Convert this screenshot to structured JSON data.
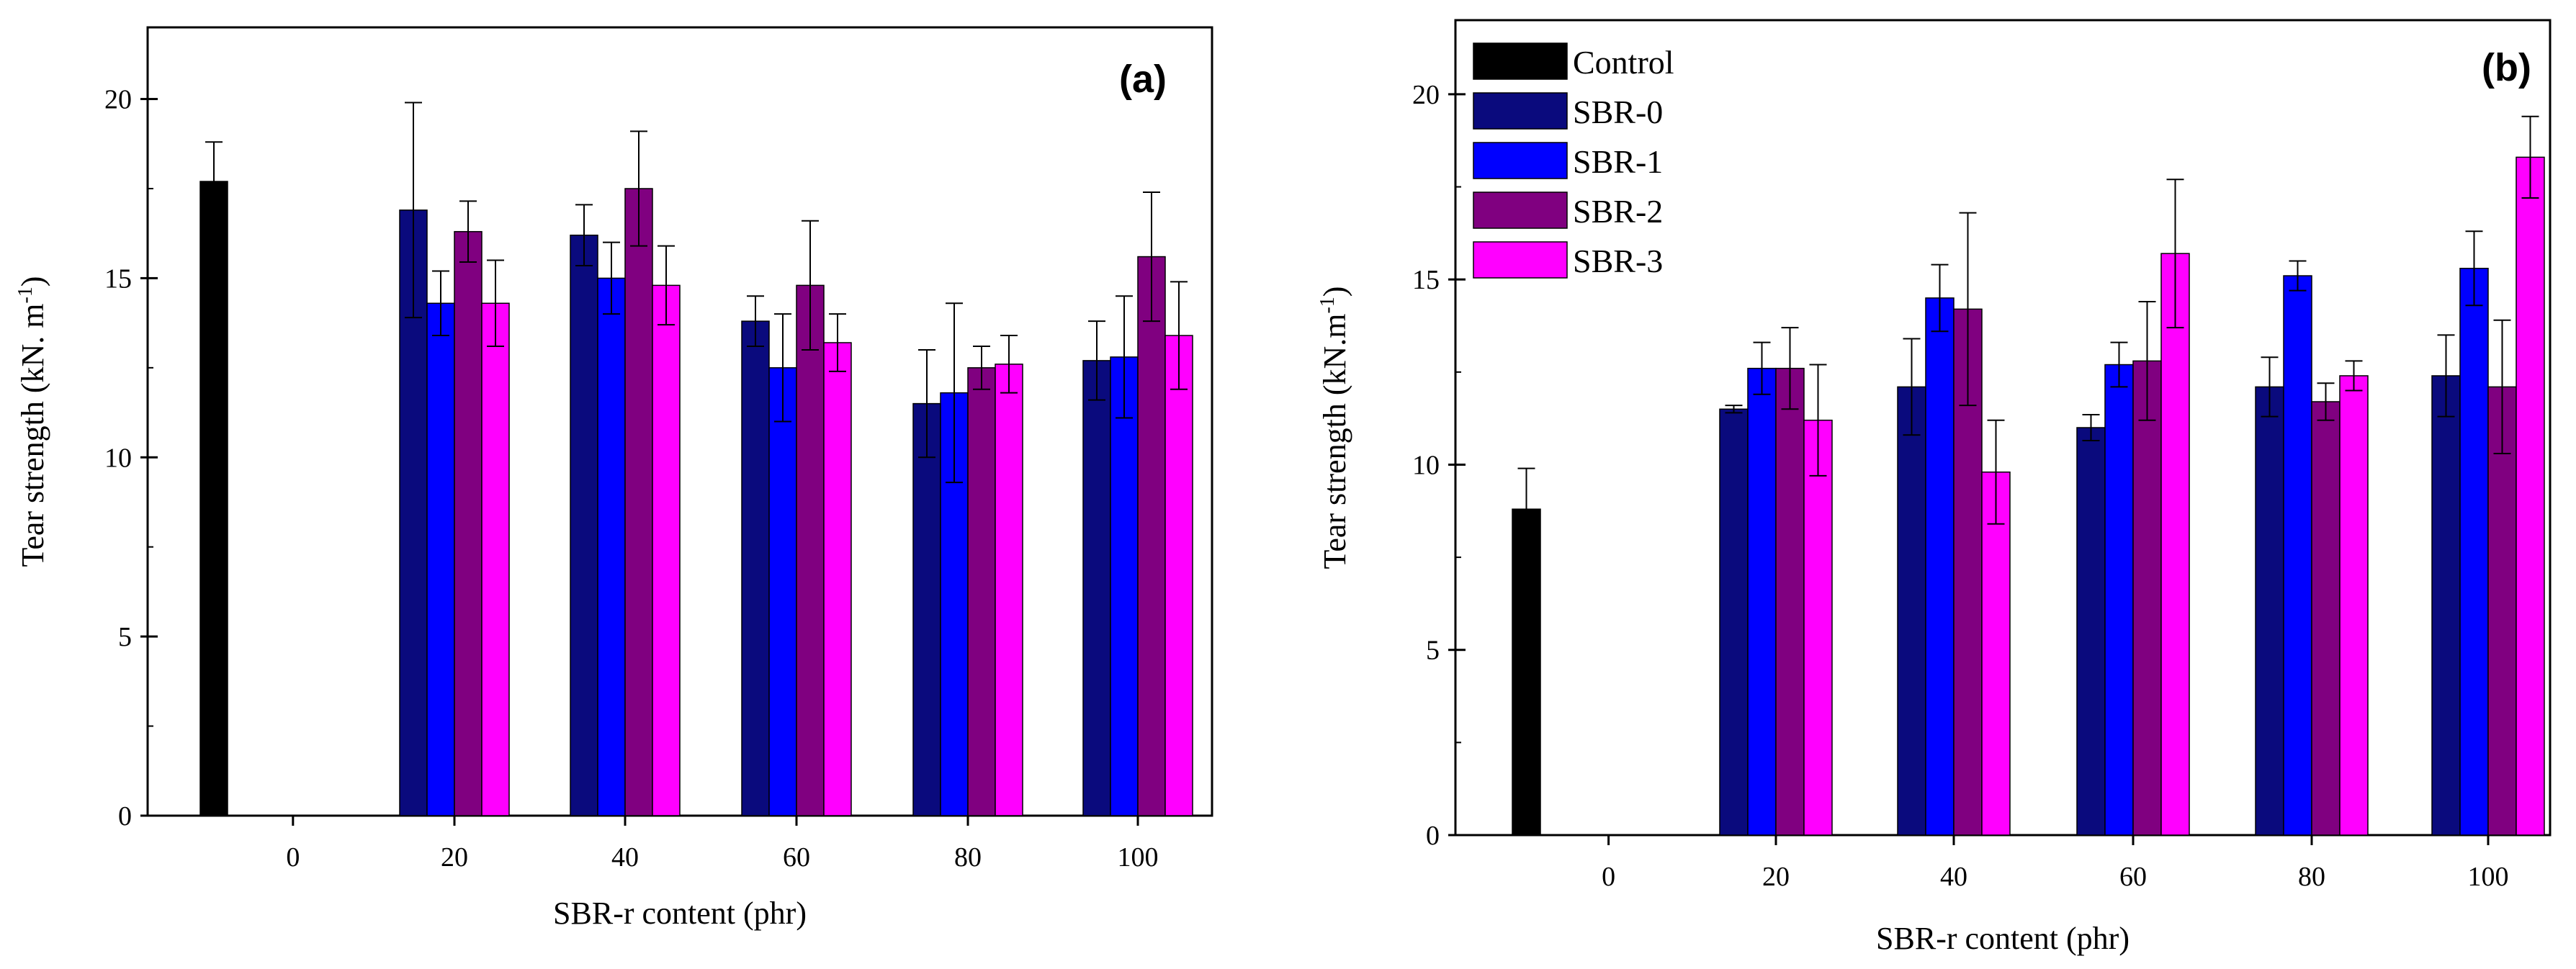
{
  "chart_data": [
    {
      "type": "bar",
      "panel_label": "(a)",
      "xlabel": "SBR-r content (phr)",
      "ylabel": "Tear strength (kN. m",
      "ylabel_sup": "-1",
      "ylabel_close": ")",
      "ylim": [
        0,
        22
      ],
      "yticks": [
        0,
        5,
        10,
        15,
        20
      ],
      "categories": [
        "0",
        "20",
        "40",
        "60",
        "80",
        "100"
      ],
      "legend": "none",
      "series": [
        {
          "name": "Control",
          "color": "#000000",
          "values": [
            17.7,
            null,
            null,
            null,
            null,
            null
          ],
          "errors": [
            1.1,
            null,
            null,
            null,
            null,
            null
          ]
        },
        {
          "name": "SBR-0",
          "color": "#0a0a7d",
          "values": [
            null,
            16.9,
            16.2,
            13.8,
            11.5,
            12.7
          ],
          "errors": [
            null,
            3.0,
            0.85,
            0.7,
            1.5,
            1.1
          ]
        },
        {
          "name": "SBR-1",
          "color": "#0000ff",
          "values": [
            null,
            14.3,
            15.0,
            12.5,
            11.8,
            12.8
          ],
          "errors": [
            null,
            0.9,
            1.0,
            1.5,
            2.5,
            1.7
          ]
        },
        {
          "name": "SBR-2",
          "color": "#800080",
          "values": [
            null,
            16.3,
            17.5,
            14.8,
            12.5,
            15.6
          ],
          "errors": [
            null,
            0.85,
            1.6,
            1.8,
            0.6,
            1.8
          ]
        },
        {
          "name": "SBR-3",
          "color": "#ff00ff",
          "values": [
            null,
            14.3,
            14.8,
            13.2,
            12.6,
            13.4
          ],
          "errors": [
            null,
            1.2,
            1.1,
            0.8,
            0.8,
            1.5
          ]
        }
      ]
    },
    {
      "type": "bar",
      "panel_label": "(b)",
      "xlabel": "SBR-r content (phr)",
      "ylabel": "Tear strength (kN.m",
      "ylabel_sup": "-1",
      "ylabel_close": ")",
      "ylim": [
        0,
        22
      ],
      "yticks": [
        0,
        5,
        10,
        15,
        20
      ],
      "categories": [
        "0",
        "20",
        "40",
        "60",
        "80",
        "100"
      ],
      "legend": "top-left",
      "series": [
        {
          "name": "Control",
          "color": "#000000",
          "values": [
            8.8,
            null,
            null,
            null,
            null,
            null
          ],
          "errors": [
            1.1,
            null,
            null,
            null,
            null,
            null
          ]
        },
        {
          "name": "SBR-0",
          "color": "#0a0a7d",
          "values": [
            null,
            11.5,
            12.1,
            11.0,
            12.1,
            12.4
          ],
          "errors": [
            null,
            0.1,
            1.3,
            0.35,
            0.8,
            1.1
          ]
        },
        {
          "name": "SBR-1",
          "color": "#0000ff",
          "values": [
            null,
            12.6,
            14.5,
            12.7,
            15.1,
            15.3
          ],
          "errors": [
            null,
            0.7,
            0.9,
            0.6,
            0.4,
            1.0
          ]
        },
        {
          "name": "SBR-2",
          "color": "#800080",
          "values": [
            null,
            12.6,
            14.2,
            12.8,
            11.7,
            12.1
          ],
          "errors": [
            null,
            1.1,
            2.6,
            1.6,
            0.5,
            1.8
          ]
        },
        {
          "name": "SBR-3",
          "color": "#ff00ff",
          "values": [
            null,
            11.2,
            9.8,
            15.7,
            12.4,
            18.3
          ],
          "errors": [
            null,
            1.5,
            1.4,
            2.0,
            0.4,
            1.1
          ]
        }
      ]
    }
  ]
}
